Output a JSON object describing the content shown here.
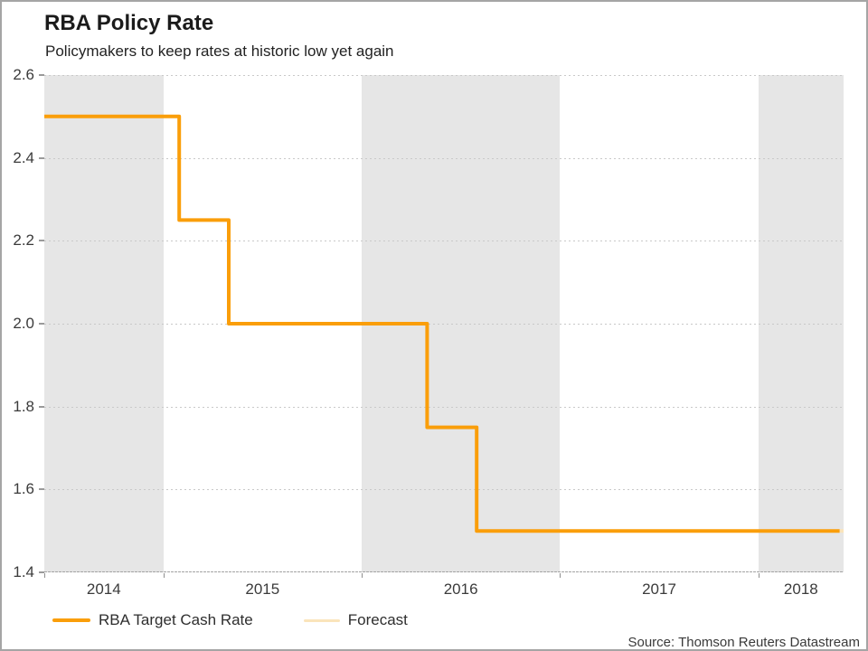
{
  "header": {
    "title": "RBA Policy Rate",
    "subtitle": "Policymakers to keep rates at historic low yet again"
  },
  "source": "Source: Thomson Reuters Datastream",
  "colors": {
    "line": "#FA9E0A",
    "forecast": "#FAE4BB",
    "band": "#E6E6E6",
    "background": "#FFFFFF"
  },
  "legend": [
    {
      "label": "RBA Target Cash Rate",
      "color": "#FA9E0A"
    },
    {
      "label": "Forecast",
      "color": "#FAE4BB"
    }
  ],
  "chart_data": {
    "type": "line",
    "subtype": "step",
    "title": "RBA Policy Rate",
    "subtitle": "Policymakers to keep rates at historic low yet again",
    "xlabel": "",
    "ylabel": "",
    "x_domain": [
      2014.4,
      2018.43
    ],
    "y_domain": [
      1.4,
      2.6
    ],
    "y_ticks": [
      2.6,
      2.4,
      2.2,
      2.0,
      1.8,
      1.6,
      1.4
    ],
    "y_tick_labels": [
      "2.6",
      "2.4",
      "2.2",
      "2.0",
      "1.8",
      "1.6",
      "1.4"
    ],
    "x_tick_labels": [
      "2014",
      "2015",
      "2016",
      "2017",
      "2018"
    ],
    "grid": "horizontal-dotted",
    "plot_bands": "alternating year bands, even years shaded gray",
    "legend_position": "bottom-left",
    "series": [
      {
        "name": "RBA Target Cash Rate",
        "color": "#FA9E0A",
        "width": 4,
        "points": [
          [
            2014.4,
            2.5
          ],
          [
            2015.08,
            2.5
          ],
          [
            2015.08,
            2.25
          ],
          [
            2015.33,
            2.25
          ],
          [
            2015.33,
            2.0
          ],
          [
            2016.33,
            2.0
          ],
          [
            2016.33,
            1.75
          ],
          [
            2016.58,
            1.75
          ],
          [
            2016.58,
            1.5
          ],
          [
            2018.41,
            1.5
          ]
        ]
      },
      {
        "name": "Forecast",
        "color": "#FAE4BB",
        "width": 4,
        "points": [
          [
            2018.41,
            1.5
          ],
          [
            2018.43,
            1.5
          ]
        ]
      }
    ]
  }
}
